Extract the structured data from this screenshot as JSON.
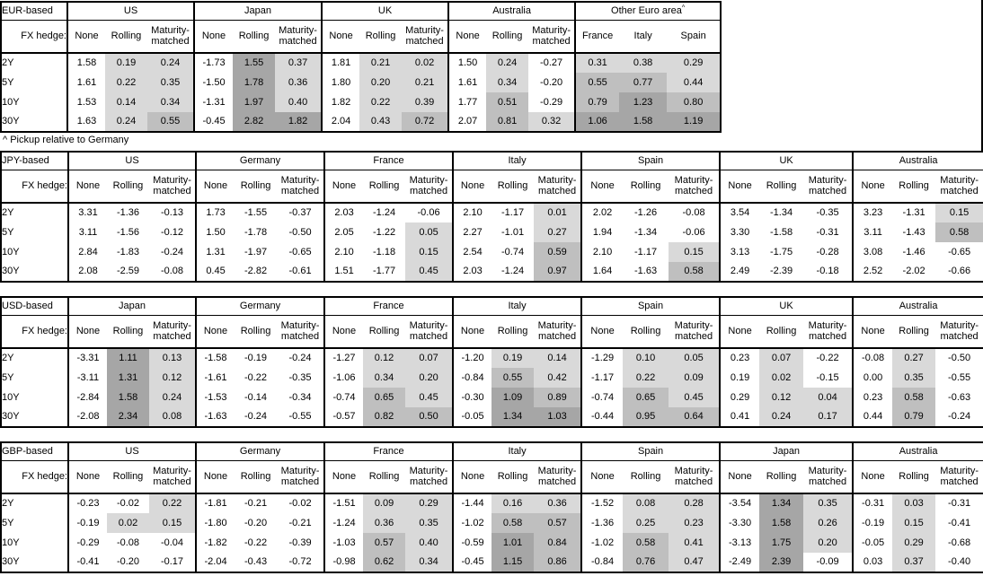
{
  "footnote": "^ Pickup relative to Germany",
  "fx_hedge_label": "FX hedge:",
  "row_labels": [
    "2Y",
    "5Y",
    "10Y",
    "30Y"
  ],
  "heatmap": {
    "rule": "shaded columns colored by value band; None columns always white",
    "bands": [
      {
        "min": 1.0,
        "color": "#a6a6a6"
      },
      {
        "min": 0.5,
        "color": "#bfbfbf"
      },
      {
        "min": 0.0,
        "color": "#d9d9d9"
      }
    ],
    "below_zero_color": "#ffffff",
    "border_color": "#000000",
    "background_color": "#ffffff"
  },
  "tables": [
    {
      "id": "eur-based",
      "base_label": "EUR-based",
      "groups": [
        {
          "name": "US",
          "sub": [
            "None",
            "Rolling",
            "Maturity-\nmatched"
          ],
          "shade": [
            false,
            true,
            true
          ],
          "values": [
            [
              "1.58",
              "0.19",
              "0.24"
            ],
            [
              "1.61",
              "0.22",
              "0.35"
            ],
            [
              "1.53",
              "0.14",
              "0.34"
            ],
            [
              "1.63",
              "0.24",
              "0.55"
            ]
          ]
        },
        {
          "name": "Japan",
          "sub": [
            "None",
            "Rolling",
            "Maturity-\nmatched"
          ],
          "shade": [
            false,
            true,
            true
          ],
          "values": [
            [
              "-1.73",
              "1.55",
              "0.37"
            ],
            [
              "-1.50",
              "1.78",
              "0.36"
            ],
            [
              "-1.31",
              "1.97",
              "0.40"
            ],
            [
              "-0.45",
              "2.82",
              "1.82"
            ]
          ]
        },
        {
          "name": "UK",
          "sub": [
            "None",
            "Rolling",
            "Maturity-\nmatched"
          ],
          "shade": [
            false,
            true,
            true
          ],
          "values": [
            [
              "1.81",
              "0.21",
              "0.02"
            ],
            [
              "1.80",
              "0.20",
              "0.21"
            ],
            [
              "1.82",
              "0.22",
              "0.39"
            ],
            [
              "2.04",
              "0.43",
              "0.72"
            ]
          ]
        },
        {
          "name": "Australia",
          "sub": [
            "None",
            "Rolling",
            "Maturity-\nmatched"
          ],
          "shade": [
            false,
            true,
            true
          ],
          "values": [
            [
              "1.50",
              "0.24",
              "-0.27"
            ],
            [
              "1.61",
              "0.34",
              "-0.20"
            ],
            [
              "1.77",
              "0.51",
              "-0.29"
            ],
            [
              "2.07",
              "0.81",
              "0.32"
            ]
          ]
        },
        {
          "name": "Other Euro area",
          "superscript": "^",
          "sub": [
            "France",
            "Italy",
            "Spain"
          ],
          "shade": [
            true,
            true,
            true
          ],
          "values": [
            [
              "0.31",
              "0.38",
              "0.29"
            ],
            [
              "0.55",
              "0.77",
              "0.44"
            ],
            [
              "0.79",
              "1.23",
              "0.80"
            ],
            [
              "1.06",
              "1.58",
              "1.19"
            ]
          ]
        }
      ]
    },
    {
      "id": "jpy-based",
      "base_label": "JPY-based",
      "groups": [
        {
          "name": "US",
          "sub": [
            "None",
            "Rolling",
            "Maturity-\nmatched"
          ],
          "shade": [
            false,
            true,
            true
          ],
          "values": [
            [
              "3.31",
              "-1.36",
              "-0.13"
            ],
            [
              "3.11",
              "-1.56",
              "-0.12"
            ],
            [
              "2.84",
              "-1.83",
              "-0.24"
            ],
            [
              "2.08",
              "-2.59",
              "-0.08"
            ]
          ]
        },
        {
          "name": "Germany",
          "sub": [
            "None",
            "Rolling",
            "Maturity-\nmatched"
          ],
          "shade": [
            false,
            true,
            true
          ],
          "values": [
            [
              "1.73",
              "-1.55",
              "-0.37"
            ],
            [
              "1.50",
              "-1.78",
              "-0.50"
            ],
            [
              "1.31",
              "-1.97",
              "-0.65"
            ],
            [
              "0.45",
              "-2.82",
              "-0.61"
            ]
          ]
        },
        {
          "name": "France",
          "sub": [
            "None",
            "Rolling",
            "Maturity-\nmatched"
          ],
          "shade": [
            false,
            true,
            true
          ],
          "values": [
            [
              "2.03",
              "-1.24",
              "-0.06"
            ],
            [
              "2.05",
              "-1.22",
              "0.05"
            ],
            [
              "2.10",
              "-1.18",
              "0.15"
            ],
            [
              "1.51",
              "-1.77",
              "0.45"
            ]
          ]
        },
        {
          "name": "Italy",
          "sub": [
            "None",
            "Rolling",
            "Maturity-\nmatched"
          ],
          "shade": [
            false,
            true,
            true
          ],
          "values": [
            [
              "2.10",
              "-1.17",
              "0.01"
            ],
            [
              "2.27",
              "-1.01",
              "0.27"
            ],
            [
              "2.54",
              "-0.74",
              "0.59"
            ],
            [
              "2.03",
              "-1.24",
              "0.97"
            ]
          ]
        },
        {
          "name": "Spain",
          "sub": [
            "None",
            "Rolling",
            "Maturity-\nmatched"
          ],
          "shade": [
            false,
            true,
            true
          ],
          "values": [
            [
              "2.02",
              "-1.26",
              "-0.08"
            ],
            [
              "1.94",
              "-1.34",
              "-0.06"
            ],
            [
              "2.10",
              "-1.17",
              "0.15"
            ],
            [
              "1.64",
              "-1.63",
              "0.58"
            ]
          ]
        },
        {
          "name": "UK",
          "sub": [
            "None",
            "Rolling",
            "Maturity-\nmatched"
          ],
          "shade": [
            false,
            true,
            true
          ],
          "values": [
            [
              "3.54",
              "-1.34",
              "-0.35"
            ],
            [
              "3.30",
              "-1.58",
              "-0.31"
            ],
            [
              "3.13",
              "-1.75",
              "-0.28"
            ],
            [
              "2.49",
              "-2.39",
              "-0.18"
            ]
          ]
        },
        {
          "name": "Australia",
          "sub": [
            "None",
            "Rolling",
            "Maturity-\nmatched"
          ],
          "shade": [
            false,
            true,
            true
          ],
          "values": [
            [
              "3.23",
              "-1.31",
              "0.15"
            ],
            [
              "3.11",
              "-1.43",
              "0.58"
            ],
            [
              "3.08",
              "-1.46",
              "-0.65"
            ],
            [
              "2.52",
              "-2.02",
              "-0.66"
            ]
          ]
        }
      ]
    },
    {
      "id": "usd-based",
      "base_label": "USD-based",
      "groups": [
        {
          "name": "Japan",
          "sub": [
            "None",
            "Rolling",
            "Maturity-\nmatched"
          ],
          "shade": [
            false,
            true,
            true
          ],
          "values": [
            [
              "-3.31",
              "1.11",
              "0.13"
            ],
            [
              "-3.11",
              "1.31",
              "0.12"
            ],
            [
              "-2.84",
              "1.58",
              "0.24"
            ],
            [
              "-2.08",
              "2.34",
              "0.08"
            ]
          ]
        },
        {
          "name": "Germany",
          "sub": [
            "None",
            "Rolling",
            "Maturity-\nmatched"
          ],
          "shade": [
            false,
            true,
            true
          ],
          "values": [
            [
              "-1.58",
              "-0.19",
              "-0.24"
            ],
            [
              "-1.61",
              "-0.22",
              "-0.35"
            ],
            [
              "-1.53",
              "-0.14",
              "-0.34"
            ],
            [
              "-1.63",
              "-0.24",
              "-0.55"
            ]
          ]
        },
        {
          "name": "France",
          "sub": [
            "None",
            "Rolling",
            "Maturity-\nmatched"
          ],
          "shade": [
            false,
            true,
            true
          ],
          "values": [
            [
              "-1.27",
              "0.12",
              "0.07"
            ],
            [
              "-1.06",
              "0.34",
              "0.20"
            ],
            [
              "-0.74",
              "0.65",
              "0.45"
            ],
            [
              "-0.57",
              "0.82",
              "0.50"
            ]
          ]
        },
        {
          "name": "Italy",
          "sub": [
            "None",
            "Rolling",
            "Maturity-\nmatched"
          ],
          "shade": [
            false,
            true,
            true
          ],
          "values": [
            [
              "-1.20",
              "0.19",
              "0.14"
            ],
            [
              "-0.84",
              "0.55",
              "0.42"
            ],
            [
              "-0.30",
              "1.09",
              "0.89"
            ],
            [
              "-0.05",
              "1.34",
              "1.03"
            ]
          ]
        },
        {
          "name": "Spain",
          "sub": [
            "None",
            "Rolling",
            "Maturity-\nmatched"
          ],
          "shade": [
            false,
            true,
            true
          ],
          "values": [
            [
              "-1.29",
              "0.10",
              "0.05"
            ],
            [
              "-1.17",
              "0.22",
              "0.09"
            ],
            [
              "-0.74",
              "0.65",
              "0.45"
            ],
            [
              "-0.44",
              "0.95",
              "0.64"
            ]
          ]
        },
        {
          "name": "UK",
          "sub": [
            "None",
            "Rolling",
            "Maturity-\nmatched"
          ],
          "shade": [
            false,
            true,
            true
          ],
          "values": [
            [
              "0.23",
              "0.07",
              "-0.22"
            ],
            [
              "0.19",
              "0.02",
              "-0.15"
            ],
            [
              "0.29",
              "0.12",
              "0.04"
            ],
            [
              "0.41",
              "0.24",
              "0.17"
            ]
          ]
        },
        {
          "name": "Australia",
          "sub": [
            "None",
            "Rolling",
            "Maturity-\nmatched"
          ],
          "shade": [
            false,
            true,
            true
          ],
          "values": [
            [
              "-0.08",
              "0.27",
              "-0.50"
            ],
            [
              "0.00",
              "0.35",
              "-0.55"
            ],
            [
              "0.23",
              "0.58",
              "-0.63"
            ],
            [
              "0.44",
              "0.79",
              "-0.24"
            ]
          ]
        }
      ]
    },
    {
      "id": "gbp-based",
      "base_label": "GBP-based",
      "groups": [
        {
          "name": "US",
          "sub": [
            "None",
            "Rolling",
            "Maturity-\nmatched"
          ],
          "shade": [
            false,
            true,
            true
          ],
          "values": [
            [
              "-0.23",
              "-0.02",
              "0.22"
            ],
            [
              "-0.19",
              "0.02",
              "0.15"
            ],
            [
              "-0.29",
              "-0.08",
              "-0.04"
            ],
            [
              "-0.41",
              "-0.20",
              "-0.17"
            ]
          ]
        },
        {
          "name": "Germany",
          "sub": [
            "None",
            "Rolling",
            "Maturity-\nmatched"
          ],
          "shade": [
            false,
            true,
            true
          ],
          "values": [
            [
              "-1.81",
              "-0.21",
              "-0.02"
            ],
            [
              "-1.80",
              "-0.20",
              "-0.21"
            ],
            [
              "-1.82",
              "-0.22",
              "-0.39"
            ],
            [
              "-2.04",
              "-0.43",
              "-0.72"
            ]
          ]
        },
        {
          "name": "France",
          "sub": [
            "None",
            "Rolling",
            "Maturity-\nmatched"
          ],
          "shade": [
            false,
            true,
            true
          ],
          "values": [
            [
              "-1.51",
              "0.09",
              "0.29"
            ],
            [
              "-1.24",
              "0.36",
              "0.35"
            ],
            [
              "-1.03",
              "0.57",
              "0.40"
            ],
            [
              "-0.98",
              "0.62",
              "0.34"
            ]
          ]
        },
        {
          "name": "Italy",
          "sub": [
            "None",
            "Rolling",
            "Maturity-\nmatched"
          ],
          "shade": [
            false,
            true,
            true
          ],
          "values": [
            [
              "-1.44",
              "0.16",
              "0.36"
            ],
            [
              "-1.02",
              "0.58",
              "0.57"
            ],
            [
              "-0.59",
              "1.01",
              "0.84"
            ],
            [
              "-0.45",
              "1.15",
              "0.86"
            ]
          ]
        },
        {
          "name": "Spain",
          "sub": [
            "None",
            "Rolling",
            "Maturity-\nmatched"
          ],
          "shade": [
            false,
            true,
            true
          ],
          "values": [
            [
              "-1.52",
              "0.08",
              "0.28"
            ],
            [
              "-1.36",
              "0.25",
              "0.23"
            ],
            [
              "-1.02",
              "0.58",
              "0.41"
            ],
            [
              "-0.84",
              "0.76",
              "0.47"
            ]
          ]
        },
        {
          "name": "Japan",
          "sub": [
            "None",
            "Rolling",
            "Maturity-\nmatched"
          ],
          "shade": [
            false,
            true,
            true
          ],
          "values": [
            [
              "-3.54",
              "1.34",
              "0.35"
            ],
            [
              "-3.30",
              "1.58",
              "0.26"
            ],
            [
              "-3.13",
              "1.75",
              "0.20"
            ],
            [
              "-2.49",
              "2.39",
              "-0.09"
            ]
          ]
        },
        {
          "name": "Australia",
          "sub": [
            "None",
            "Rolling",
            "Maturity-\nmatched"
          ],
          "shade": [
            false,
            true,
            true
          ],
          "values": [
            [
              "-0.31",
              "0.03",
              "-0.31"
            ],
            [
              "-0.19",
              "0.15",
              "-0.41"
            ],
            [
              "-0.05",
              "0.29",
              "-0.68"
            ],
            [
              "0.03",
              "0.37",
              "-0.40"
            ]
          ]
        }
      ]
    }
  ]
}
